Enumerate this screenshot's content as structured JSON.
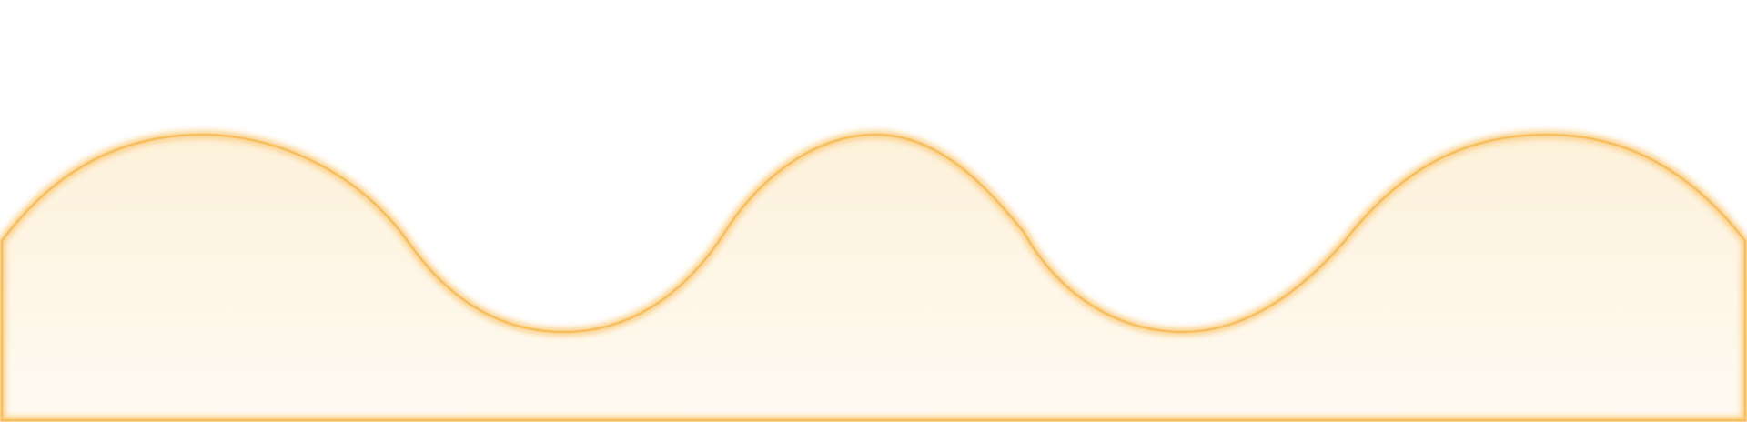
{
  "graphic": {
    "fill_top_color": "#FDF1DA",
    "fill_bottom_color": "#FEFBF3",
    "stroke_color": "#F7BE5E",
    "glow_color": "#FAD08A"
  }
}
